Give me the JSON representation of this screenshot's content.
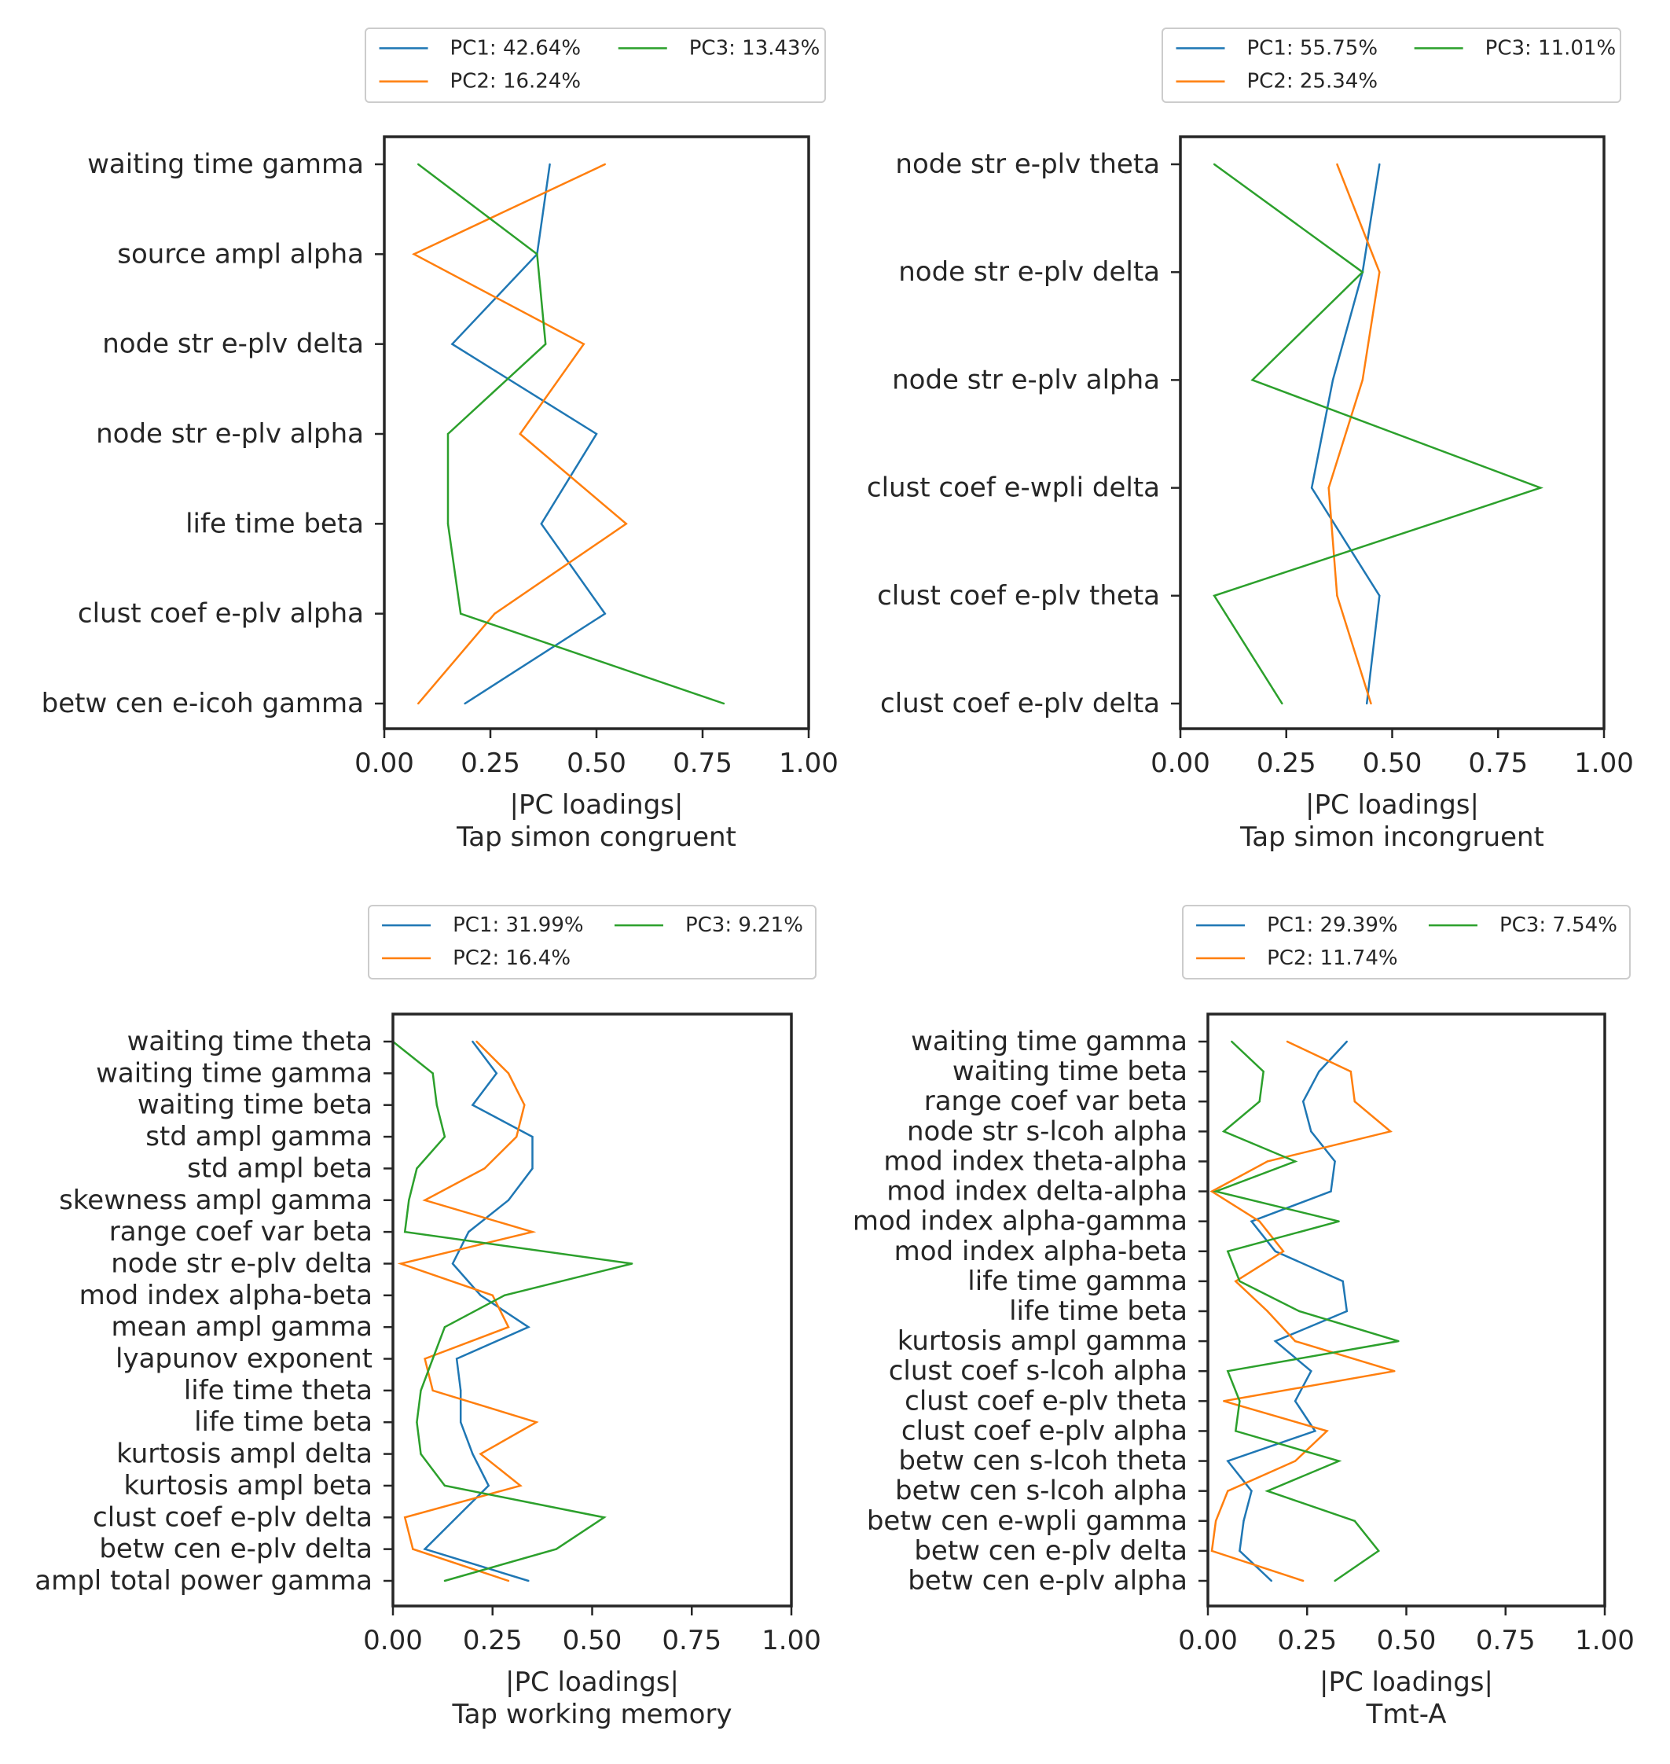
{
  "chart_data": [
    {
      "type": "line",
      "orientation": "horizontal",
      "xlabel": "|PC loadings|",
      "subtitle": "Tap simon congruent",
      "xlim": [
        0,
        1
      ],
      "xticks": [
        "0.00",
        "0.25",
        "0.50",
        "0.75",
        "1.00"
      ],
      "categories": [
        "waiting time gamma",
        "source ampl alpha",
        "node str e-plv delta",
        "node str e-plv alpha",
        "life time beta",
        "clust coef e-plv alpha",
        "betw cen e-icoh gamma"
      ],
      "series": [
        {
          "name": "PC1: 42.64%",
          "color": "#1f77b4",
          "values": [
            0.39,
            0.36,
            0.16,
            0.5,
            0.37,
            0.52,
            0.19
          ]
        },
        {
          "name": "PC2: 16.24%",
          "color": "#ff7f0e",
          "values": [
            0.52,
            0.07,
            0.47,
            0.32,
            0.57,
            0.26,
            0.08
          ]
        },
        {
          "name": "PC3: 13.43%",
          "color": "#2ca02c",
          "values": [
            0.08,
            0.36,
            0.38,
            0.15,
            0.15,
            0.18,
            0.8
          ]
        }
      ],
      "legend": "top-center, 2 columns"
    },
    {
      "type": "line",
      "orientation": "horizontal",
      "xlabel": "|PC loadings|",
      "subtitle": "Tap simon incongruent",
      "xlim": [
        0,
        1
      ],
      "xticks": [
        "0.00",
        "0.25",
        "0.50",
        "0.75",
        "1.00"
      ],
      "categories": [
        "node str e-plv theta",
        "node str e-plv delta",
        "node str e-plv alpha",
        "clust coef e-wpli delta",
        "clust coef e-plv theta",
        "clust coef e-plv delta"
      ],
      "series": [
        {
          "name": "PC1: 55.75%",
          "color": "#1f77b4",
          "values": [
            0.47,
            0.43,
            0.36,
            0.31,
            0.47,
            0.44
          ]
        },
        {
          "name": "PC2: 25.34%",
          "color": "#ff7f0e",
          "values": [
            0.37,
            0.47,
            0.43,
            0.35,
            0.37,
            0.45
          ]
        },
        {
          "name": "PC3: 11.01%",
          "color": "#2ca02c",
          "values": [
            0.08,
            0.43,
            0.17,
            0.85,
            0.08,
            0.24
          ]
        }
      ],
      "legend": "top-center, 2 columns"
    },
    {
      "type": "line",
      "orientation": "horizontal",
      "xlabel": "|PC loadings|",
      "subtitle": "Tap working memory",
      "xlim": [
        0,
        1
      ],
      "xticks": [
        "0.00",
        "0.25",
        "0.50",
        "0.75",
        "1.00"
      ],
      "categories": [
        "waiting time theta",
        "waiting time gamma",
        "waiting time beta",
        "std ampl gamma",
        "std ampl beta",
        "skewness ampl gamma",
        "range coef var beta",
        "node str e-plv delta",
        "mod index alpha-beta",
        "mean ampl gamma",
        "lyapunov exponent",
        "life time theta",
        "life time beta",
        "kurtosis ampl delta",
        "kurtosis ampl beta",
        "clust coef e-plv delta",
        "betw cen e-plv delta",
        "ampl total power gamma"
      ],
      "series": [
        {
          "name": "PC1: 31.99%",
          "color": "#1f77b4",
          "values": [
            0.2,
            0.26,
            0.2,
            0.35,
            0.35,
            0.29,
            0.19,
            0.15,
            0.22,
            0.34,
            0.16,
            0.17,
            0.17,
            0.2,
            0.24,
            0.16,
            0.08,
            0.34
          ]
        },
        {
          "name": "PC2: 16.4%",
          "color": "#ff7f0e",
          "values": [
            0.21,
            0.29,
            0.33,
            0.31,
            0.23,
            0.08,
            0.35,
            0.02,
            0.25,
            0.29,
            0.08,
            0.1,
            0.36,
            0.22,
            0.32,
            0.03,
            0.05,
            0.29
          ]
        },
        {
          "name": "PC3: 9.21%",
          "color": "#2ca02c",
          "values": [
            0.0,
            0.1,
            0.11,
            0.13,
            0.06,
            0.04,
            0.03,
            0.6,
            0.28,
            0.13,
            0.1,
            0.07,
            0.06,
            0.07,
            0.13,
            0.53,
            0.41,
            0.13
          ]
        }
      ],
      "legend": "top-center, 2 columns"
    },
    {
      "type": "line",
      "orientation": "horizontal",
      "xlabel": "|PC loadings|",
      "subtitle": "Tmt-A",
      "xlim": [
        0,
        1
      ],
      "xticks": [
        "0.00",
        "0.25",
        "0.50",
        "0.75",
        "1.00"
      ],
      "categories": [
        "waiting time gamma",
        "waiting time beta",
        "range coef var beta",
        "node str s-lcoh alpha",
        "mod index theta-alpha",
        "mod index delta-alpha",
        "mod index alpha-gamma",
        "mod index alpha-beta",
        "life time gamma",
        "life time beta",
        "kurtosis ampl gamma",
        "clust coef s-lcoh alpha",
        "clust coef e-plv theta",
        "clust coef e-plv alpha",
        "betw cen s-lcoh theta",
        "betw cen s-lcoh alpha",
        "betw cen e-wpli gamma",
        "betw cen e-plv delta",
        "betw cen e-plv alpha"
      ],
      "series": [
        {
          "name": "PC1: 29.39%",
          "color": "#1f77b4",
          "values": [
            0.35,
            0.28,
            0.24,
            0.26,
            0.32,
            0.31,
            0.11,
            0.17,
            0.34,
            0.35,
            0.17,
            0.26,
            0.22,
            0.27,
            0.05,
            0.11,
            0.09,
            0.08,
            0.16
          ]
        },
        {
          "name": "PC2: 11.74%",
          "color": "#ff7f0e",
          "values": [
            0.2,
            0.36,
            0.37,
            0.46,
            0.15,
            0.01,
            0.13,
            0.19,
            0.07,
            0.15,
            0.22,
            0.47,
            0.04,
            0.3,
            0.22,
            0.05,
            0.02,
            0.01,
            0.24
          ]
        },
        {
          "name": "PC3: 7.54%",
          "color": "#2ca02c",
          "values": [
            0.06,
            0.14,
            0.13,
            0.04,
            0.22,
            0.02,
            0.33,
            0.05,
            0.08,
            0.23,
            0.48,
            0.05,
            0.08,
            0.07,
            0.33,
            0.15,
            0.37,
            0.43,
            0.32
          ]
        }
      ],
      "legend": "top-center, 2 columns"
    }
  ]
}
